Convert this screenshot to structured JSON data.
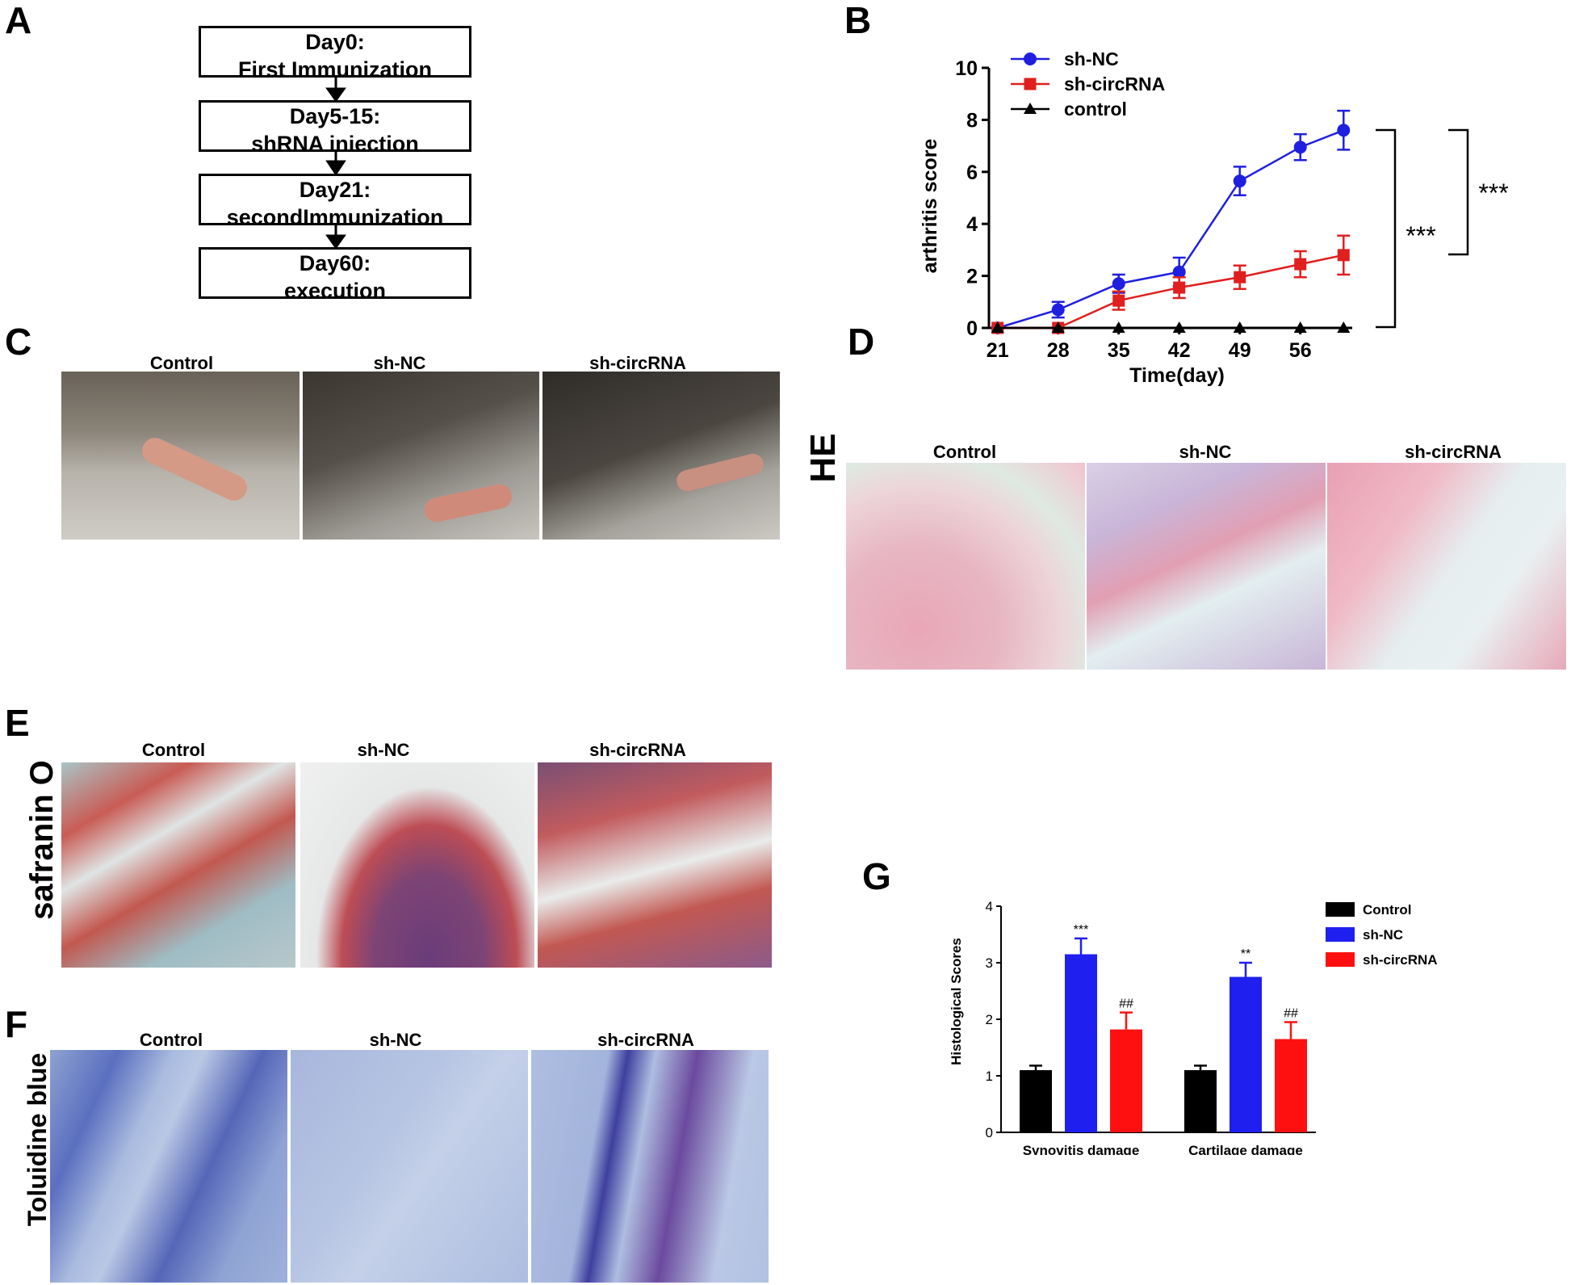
{
  "panels": {
    "A": {
      "label": "A",
      "steps": [
        {
          "line1": "Day0:",
          "line2": "First Immunization"
        },
        {
          "line1": "Day5-15:",
          "line2": "shRNA injection"
        },
        {
          "line1": "Day21:",
          "line2": "secondImmunization"
        },
        {
          "line1": "Day60:",
          "line2": "execution"
        }
      ]
    },
    "B": {
      "label": "B",
      "sig1": "***",
      "sig2": "***"
    },
    "C": {
      "label": "C",
      "cols": [
        "Control",
        "sh-NC",
        "sh-circRNA"
      ]
    },
    "D": {
      "label": "D",
      "row_label": "HE",
      "cols": [
        "Control",
        "sh-NC",
        "sh-circRNA"
      ]
    },
    "E": {
      "label": "E",
      "row_label": "safranin O",
      "cols": [
        "Control",
        "sh-NC",
        "sh-circRNA"
      ]
    },
    "F": {
      "label": "F",
      "row_label": "Toluidine blue",
      "cols": [
        "Control",
        "sh-NC",
        "sh-circRNA"
      ]
    },
    "G": {
      "label": "G"
    }
  },
  "chart_data": [
    {
      "type": "line",
      "panel": "B",
      "xlabel": "Time(day)",
      "ylabel": "arthritis score",
      "x": [
        21,
        28,
        35,
        42,
        49,
        56,
        61
      ],
      "x_tick_labels": [
        "21",
        "28",
        "35",
        "42",
        "49",
        "56"
      ],
      "x_tick_values": [
        21,
        28,
        35,
        42,
        49,
        56
      ],
      "y_ticks": [
        0,
        2,
        4,
        6,
        8,
        10
      ],
      "ylim": [
        0,
        10
      ],
      "legend_position": "top-left",
      "series": [
        {
          "name": "sh-NC",
          "color": "#1f1fe0",
          "marker": "circle",
          "values": [
            0,
            0.7,
            1.7,
            2.15,
            5.65,
            6.95,
            7.6
          ],
          "errors": [
            0,
            0.3,
            0.35,
            0.55,
            0.55,
            0.5,
            0.75
          ]
        },
        {
          "name": "sh-circRNA",
          "color": "#e01f1f",
          "marker": "square",
          "values": [
            0,
            0,
            1.05,
            1.55,
            1.95,
            2.45,
            2.8
          ],
          "errors": [
            0,
            0,
            0.35,
            0.4,
            0.45,
            0.5,
            0.75
          ]
        },
        {
          "name": "control",
          "color": "#000000",
          "marker": "triangle",
          "values": [
            0,
            0,
            0,
            0,
            0,
            0,
            0
          ],
          "errors": [
            0,
            0,
            0,
            0,
            0,
            0,
            0
          ]
        }
      ]
    },
    {
      "type": "bar",
      "panel": "G",
      "ylabel": "Histological Scores",
      "categories": [
        "Synovitis damage",
        "Cartilage damage"
      ],
      "y_ticks": [
        0,
        1,
        2,
        3,
        4
      ],
      "ylim": [
        0,
        4
      ],
      "legend_position": "right",
      "series": [
        {
          "name": "Control",
          "color": "#000000",
          "values": [
            1.1,
            1.1
          ],
          "errors": [
            0.08,
            0.08
          ],
          "annotations": [
            "",
            ""
          ]
        },
        {
          "name": "sh-NC",
          "color": "#1f1ff0",
          "values": [
            3.15,
            2.75
          ],
          "errors": [
            0.28,
            0.25
          ],
          "annotations": [
            "***",
            "**"
          ]
        },
        {
          "name": "sh-circRNA",
          "color": "#ff1010",
          "values": [
            1.82,
            1.65
          ],
          "errors": [
            0.3,
            0.3
          ],
          "annotations": [
            "##",
            "##"
          ]
        }
      ]
    }
  ]
}
